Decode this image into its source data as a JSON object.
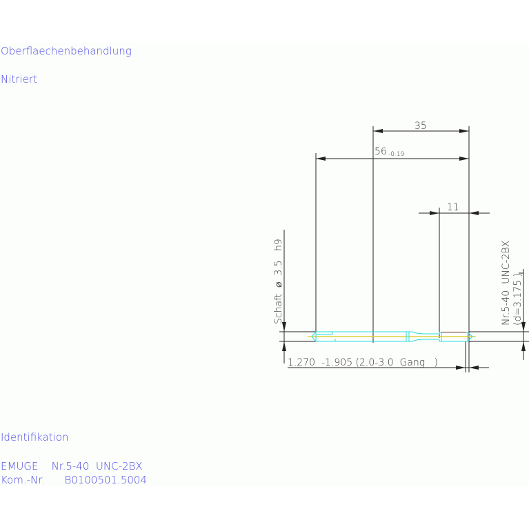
{
  "labels": {
    "surface_heading": "Oberflaechenbehandlung",
    "surface_value": "Nitriert",
    "ident_heading": "Identifikation",
    "ident_line1": "EMUGE    Nr.5-40  UNC-2BX",
    "ident_line2": "Kom.-Nr.      B0100501.5004"
  },
  "dimensions": {
    "length_35": "35",
    "length_56": "56",
    "length_56_tol": "-0.19",
    "length_11": "11",
    "shank": "Schaft  ⌀  3.5   h9",
    "thread": "Nr.5-40  UNC-2BX",
    "thread_d": "(d=3.175 )",
    "chamfer": "1.270  -1.905 (2.0-3.0  Gang   )"
  },
  "colors": {
    "text": "#4a4ae6",
    "tool_outline": "#22dddd",
    "centerline": "#e0d040",
    "thread_edge": "#ee3333"
  }
}
